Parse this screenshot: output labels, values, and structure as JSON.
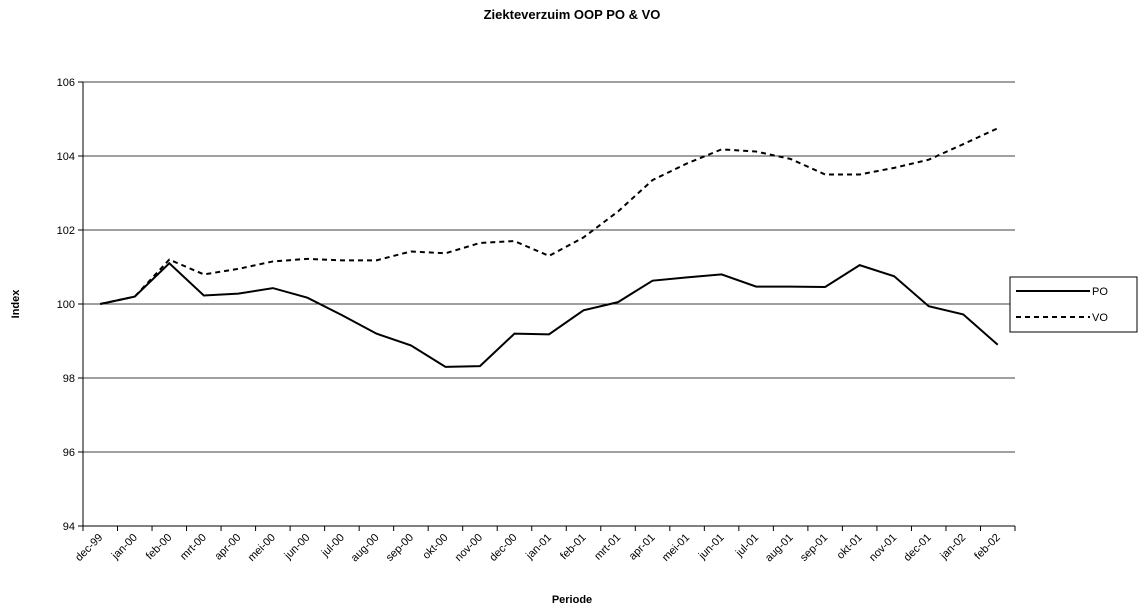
{
  "chart_data": {
    "type": "line",
    "title": "Ziekteverzuim OOP PO & VO",
    "x_label": "Periode",
    "y_label": "Index",
    "categories": [
      "dec-99",
      "jan-00",
      "feb-00",
      "mrt-00",
      "apr-00",
      "mei-00",
      "jun-00",
      "jul-00",
      "aug-00",
      "sep-00",
      "okt-00",
      "nov-00",
      "dec-00",
      "jan-01",
      "feb-01",
      "mrt-01",
      "apr-01",
      "mei-01",
      "jun-01",
      "jul-01",
      "aug-01",
      "sep-01",
      "okt-01",
      "nov-01",
      "dec-01",
      "jan-02",
      "feb-02"
    ],
    "series": [
      {
        "name": "PO",
        "color": "#000000",
        "style": "solid",
        "values": [
          100,
          100.2,
          101.1,
          100.23,
          100.28,
          100.43,
          100.17,
          99.7,
          99.2,
          98.88,
          98.3,
          98.32,
          99.2,
          99.18,
          99.83,
          100.05,
          100.63,
          100.72,
          100.8,
          100.47,
          100.47,
          100.46,
          101.05,
          100.75,
          99.94,
          99.72,
          98.9
        ]
      },
      {
        "name": "VO",
        "color": "#000000",
        "style": "dashed",
        "values": [
          100,
          100.2,
          101.2,
          100.8,
          100.95,
          101.15,
          101.22,
          101.18,
          101.18,
          101.42,
          101.37,
          101.65,
          101.7,
          101.3,
          101.8,
          102.5,
          103.35,
          103.8,
          104.18,
          104.12,
          103.92,
          103.5,
          103.5,
          103.68,
          103.9,
          104.32,
          104.75
        ]
      }
    ],
    "ylim": [
      94,
      106
    ],
    "yticks": [
      94,
      96,
      98,
      100,
      102,
      104,
      106
    ],
    "grid": true,
    "legend": "right"
  }
}
